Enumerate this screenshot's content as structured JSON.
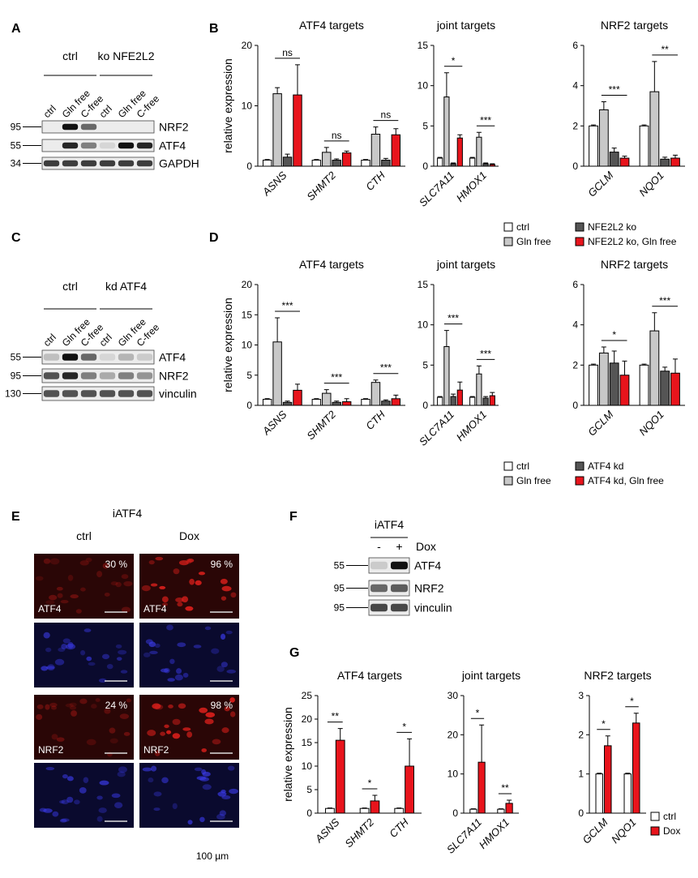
{
  "panel_labels": [
    "A",
    "B",
    "C",
    "D",
    "E",
    "F",
    "G"
  ],
  "blots": [
    {
      "groups": [
        "ctrl",
        "ko NFE2L2"
      ],
      "lanes": [
        "ctrl",
        "Gln free",
        "C-free",
        "ctrl",
        "Gln free",
        "C-free"
      ],
      "markers": [
        "95",
        "55",
        "34"
      ],
      "proteins": [
        "NRF2",
        "ATF4",
        "GAPDH"
      ]
    },
    {
      "groups": [
        "ctrl",
        "kd ATF4"
      ],
      "lanes": [
        "ctrl",
        "Gln free",
        "C-free",
        "ctrl",
        "Gln free",
        "C-free"
      ],
      "markers": [
        "55",
        "95",
        "130"
      ],
      "proteins": [
        "ATF4",
        "NRF2",
        "vinculin"
      ]
    },
    {
      "groups": [
        "iATF4"
      ],
      "lanes": [
        "-",
        "+"
      ],
      "treatment": "Dox",
      "markers": [
        "55",
        "95",
        "95"
      ],
      "proteins": [
        "ATF4",
        "NRF2",
        "vinculin"
      ]
    }
  ],
  "images": {
    "title": "iATF4",
    "columns": [
      "ctrl",
      "Dox"
    ],
    "percentages": [
      "30 %",
      "96 %",
      "24 %",
      "98 %"
    ],
    "stains": [
      "ATF4",
      "ATF4",
      "NRF2",
      "NRF2"
    ],
    "scale": "100 µm"
  },
  "chart_data": [
    {
      "type": "bar",
      "title": "ATF4 targets",
      "ylabel": "relative expression",
      "categories": [
        "ASNS",
        "SHMT2",
        "CTH"
      ],
      "series": [
        {
          "color": "#ffffff",
          "values": [
            1,
            1,
            1
          ],
          "errors": [
            0.1,
            0.1,
            0.1
          ]
        },
        {
          "color": "#c8c8c8",
          "values": [
            12,
            2.3,
            5.3
          ],
          "errors": [
            1,
            0.8,
            1.2
          ]
        },
        {
          "color": "#555555",
          "values": [
            1.5,
            1,
            1
          ],
          "errors": [
            0.5,
            0.2,
            0.3
          ]
        },
        {
          "color": "#e8141c",
          "values": [
            11.8,
            2.2,
            5.2
          ],
          "errors": [
            5,
            0.3,
            1
          ]
        }
      ],
      "significance": [
        "ns",
        "ns",
        "ns"
      ],
      "ylim": [
        0,
        20
      ],
      "yticks": [
        0,
        10,
        20
      ]
    },
    {
      "type": "bar",
      "title": "joint targets",
      "categories": [
        "SLC7A11",
        "HMOX1"
      ],
      "series": [
        {
          "color": "#ffffff",
          "values": [
            1,
            1
          ],
          "errors": [
            0.1,
            0.1
          ]
        },
        {
          "color": "#c8c8c8",
          "values": [
            8.6,
            3.6
          ],
          "errors": [
            3,
            0.6
          ]
        },
        {
          "color": "#555555",
          "values": [
            0.3,
            0.3
          ],
          "errors": [
            0.1,
            0.1
          ]
        },
        {
          "color": "#e8141c",
          "values": [
            3.5,
            0.2
          ],
          "errors": [
            0.4,
            0.1
          ]
        }
      ],
      "significance": [
        "*",
        "***"
      ],
      "ylim": [
        0,
        15
      ],
      "yticks": [
        0,
        5,
        10,
        15
      ]
    },
    {
      "type": "bar",
      "title": "NRF2 targets",
      "categories": [
        "GCLM",
        "NQO1"
      ],
      "series": [
        {
          "name": "ctrl",
          "color": "#ffffff",
          "values": [
            2,
            2
          ],
          "errors": [
            0.05,
            0.05
          ]
        },
        {
          "name": "Gln free",
          "color": "#c8c8c8",
          "values": [
            2.8,
            3.7
          ],
          "errors": [
            0.4,
            1.5
          ]
        },
        {
          "name": "NFE2L2 ko",
          "color": "#555555",
          "values": [
            0.7,
            0.35
          ],
          "errors": [
            0.2,
            0.1
          ]
        },
        {
          "name": "NFE2L2 ko, Gln free",
          "color": "#e8141c",
          "values": [
            0.4,
            0.4
          ],
          "errors": [
            0.1,
            0.15
          ]
        }
      ],
      "significance": [
        "***",
        "**"
      ],
      "ylim": [
        0,
        6
      ],
      "yticks": [
        0,
        2,
        4,
        6
      ],
      "legend": "below"
    },
    {
      "type": "bar",
      "title": "ATF4 targets",
      "ylabel": "relative expression",
      "categories": [
        "ASNS",
        "SHMT2",
        "CTH"
      ],
      "series": [
        {
          "color": "#ffffff",
          "values": [
            1,
            1,
            1
          ],
          "errors": [
            0.1,
            0.1,
            0.1
          ]
        },
        {
          "color": "#c8c8c8",
          "values": [
            10.5,
            2,
            3.8
          ],
          "errors": [
            4,
            0.6,
            0.4
          ]
        },
        {
          "color": "#555555",
          "values": [
            0.5,
            0.5,
            0.7
          ],
          "errors": [
            0.2,
            0.2,
            0.2
          ]
        },
        {
          "color": "#e8141c",
          "values": [
            2.5,
            0.6,
            1.1
          ],
          "errors": [
            1,
            0.5,
            0.6
          ]
        }
      ],
      "significance": [
        "***",
        "***",
        "***"
      ],
      "ylim": [
        0,
        20
      ],
      "yticks": [
        0,
        5,
        10,
        15,
        20
      ]
    },
    {
      "type": "bar",
      "title": "joint targets",
      "categories": [
        "SLC7A11",
        "HMOX1"
      ],
      "series": [
        {
          "color": "#ffffff",
          "values": [
            1,
            1
          ],
          "errors": [
            0.1,
            0.1
          ]
        },
        {
          "color": "#c8c8c8",
          "values": [
            7.3,
            3.9
          ],
          "errors": [
            2,
            1
          ]
        },
        {
          "color": "#555555",
          "values": [
            1.1,
            0.9
          ],
          "errors": [
            0.3,
            0.2
          ]
        },
        {
          "color": "#e8141c",
          "values": [
            1.9,
            1.2
          ],
          "errors": [
            1,
            0.4
          ]
        }
      ],
      "significance": [
        "***",
        "***"
      ],
      "ylim": [
        0,
        15
      ],
      "yticks": [
        0,
        5,
        10,
        15
      ]
    },
    {
      "type": "bar",
      "title": "NRF2 targets",
      "categories": [
        "GCLM",
        "NQO1"
      ],
      "series": [
        {
          "name": "ctrl",
          "color": "#ffffff",
          "values": [
            2,
            2
          ],
          "errors": [
            0.05,
            0.05
          ]
        },
        {
          "name": "Gln free",
          "color": "#c8c8c8",
          "values": [
            2.6,
            3.7
          ],
          "errors": [
            0.3,
            0.9
          ]
        },
        {
          "name": "ATF4 kd",
          "color": "#555555",
          "values": [
            2.1,
            1.7
          ],
          "errors": [
            0.6,
            0.2
          ]
        },
        {
          "name": "ATF4 kd, Gln free",
          "color": "#e8141c",
          "values": [
            1.5,
            1.6
          ],
          "errors": [
            0.7,
            0.7
          ]
        }
      ],
      "significance": [
        "*",
        "***"
      ],
      "ylim": [
        0,
        6
      ],
      "yticks": [
        0,
        2,
        4,
        6
      ],
      "legend": "below"
    },
    {
      "type": "bar",
      "title": "ATF4 targets",
      "ylabel": "relative expression",
      "categories": [
        "ASNS",
        "SHMT2",
        "CTH"
      ],
      "series": [
        {
          "color": "#ffffff",
          "values": [
            1,
            1,
            1
          ],
          "errors": [
            0.1,
            0.1,
            0.1
          ]
        },
        {
          "color": "#e8141c",
          "values": [
            15.5,
            2.6,
            10
          ],
          "errors": [
            2.5,
            1.2,
            5.8
          ]
        }
      ],
      "significance": [
        "**",
        "*",
        "*"
      ],
      "ylim": [
        0,
        25
      ],
      "yticks": [
        0,
        5,
        10,
        15,
        20,
        25
      ]
    },
    {
      "type": "bar",
      "title": "joint targets",
      "categories": [
        "SLC7A11",
        "HMOX1"
      ],
      "series": [
        {
          "color": "#ffffff",
          "values": [
            1,
            1
          ],
          "errors": [
            0.1,
            0.1
          ]
        },
        {
          "color": "#e8141c",
          "values": [
            13,
            2.5
          ],
          "errors": [
            9.5,
            0.8
          ]
        }
      ],
      "significance": [
        "*",
        "**"
      ],
      "ylim": [
        0,
        30
      ],
      "yticks": [
        0,
        10,
        20,
        30
      ]
    },
    {
      "type": "bar",
      "title": "NRF2 targets",
      "categories": [
        "GCLM",
        "NQO1"
      ],
      "series": [
        {
          "name": "ctrl",
          "color": "#ffffff",
          "values": [
            1,
            1
          ],
          "errors": [
            0.02,
            0.02
          ]
        },
        {
          "name": "Dox",
          "color": "#e8141c",
          "values": [
            1.72,
            2.3
          ],
          "errors": [
            0.25,
            0.25
          ]
        }
      ],
      "significance": [
        "*",
        "*"
      ],
      "ylim": [
        0,
        3
      ],
      "yticks": [
        0,
        1,
        2,
        3
      ],
      "legend": "right"
    }
  ]
}
